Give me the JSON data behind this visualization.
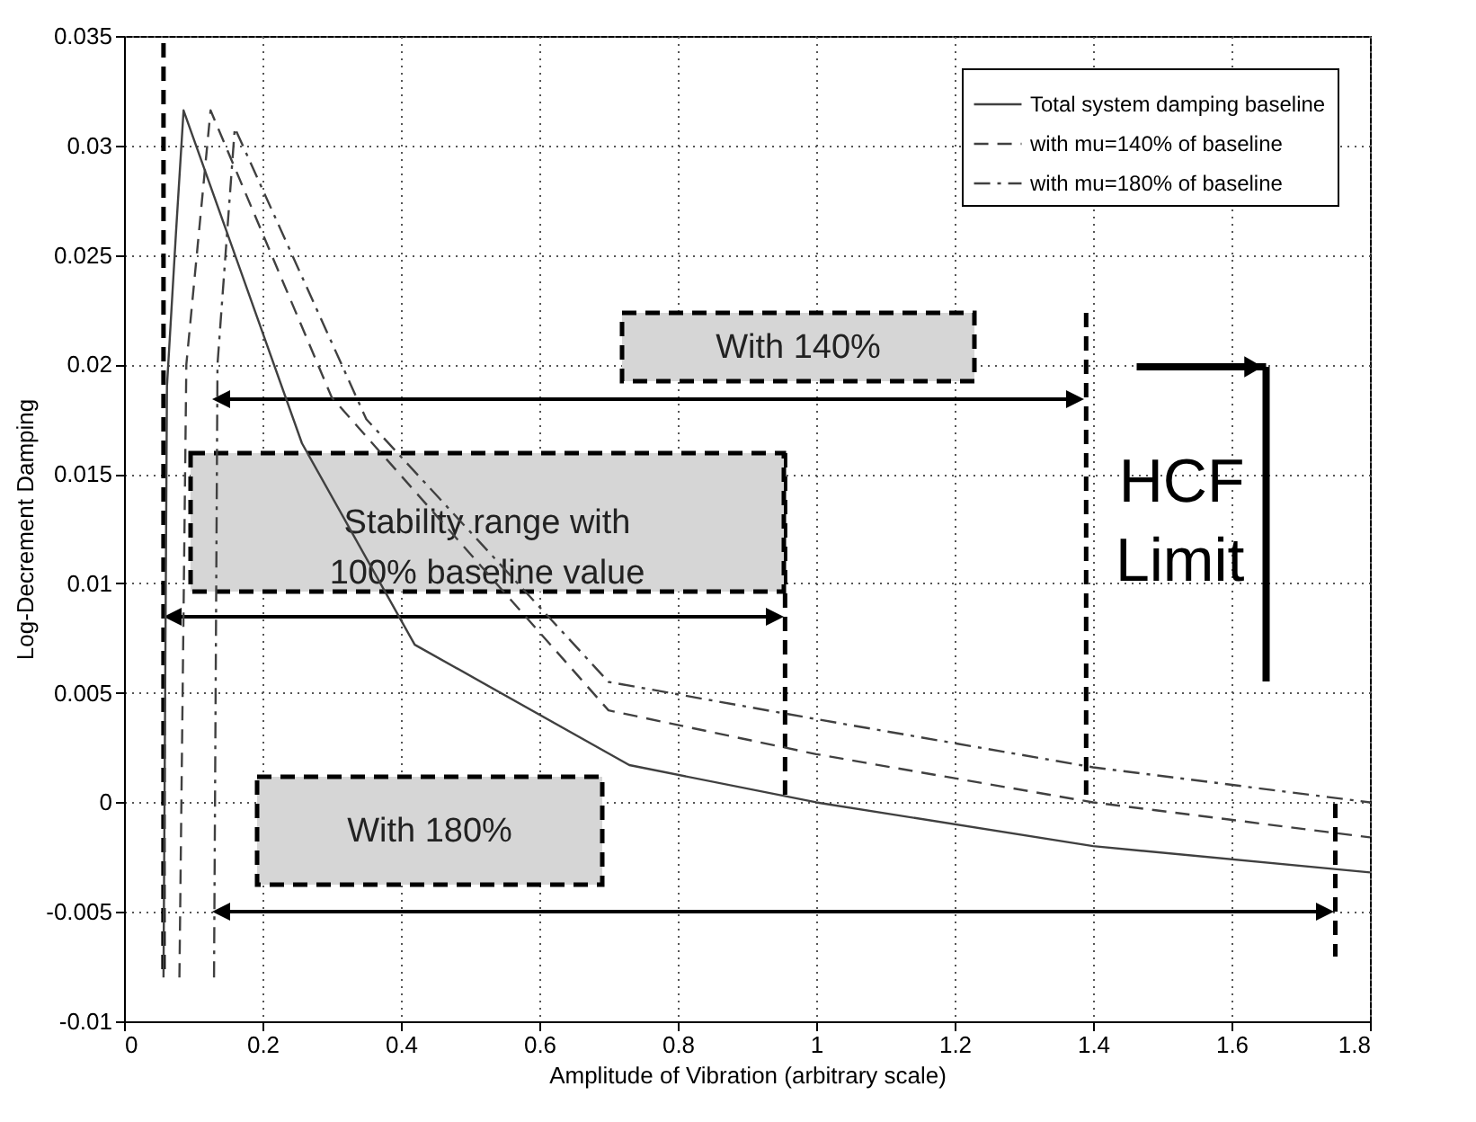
{
  "chart_data": {
    "type": "line",
    "xlabel": "Amplitude of Vibration (arbitrary scale)",
    "ylabel": "Log-Decrement Damping",
    "xlim": [
      0,
      1.8
    ],
    "xticks": [
      0,
      0.2,
      0.4,
      0.6,
      0.8,
      1,
      1.2,
      1.4,
      1.6,
      1.8
    ],
    "ylim": [
      -0.01,
      0.035
    ],
    "yticks": [
      -0.01,
      -0.005,
      0,
      0.005,
      0.01,
      0.015,
      0.02,
      0.025,
      0.03,
      0.035
    ],
    "grid": true,
    "legend": "top right",
    "series": [
      {
        "name": "Total system damping baseline",
        "color": "#404040",
        "line_style": "solid",
        "x": [
          0.057,
          0.062,
          0.075,
          0.086,
          0.257,
          0.42,
          0.73,
          1.0,
          1.4,
          1.8
        ],
        "values": [
          -0.008,
          0.019,
          0.026,
          0.0316,
          0.0164,
          0.0072,
          0.0017,
          0.0,
          -0.002,
          -0.0032
        ]
      },
      {
        "name": "with mu=140% of baseline",
        "color": "#404040",
        "line_style": "dashed",
        "x": [
          0.08,
          0.09,
          0.125,
          0.3,
          0.7,
          1.0,
          1.4,
          1.8
        ],
        "values": [
          -0.008,
          0.02,
          0.0316,
          0.0185,
          0.0042,
          0.0022,
          0.0,
          -0.0016
        ]
      },
      {
        "name": "with mu=180% of baseline",
        "color": "#404040",
        "line_style": "dashdot",
        "x": [
          0.13,
          0.135,
          0.16,
          0.35,
          0.7,
          1.0,
          1.4,
          1.8
        ],
        "values": [
          -0.008,
          0.02,
          0.0308,
          0.0175,
          0.0055,
          0.0038,
          0.0016,
          0.0
        ]
      }
    ],
    "ref_lines": [
      {
        "axis": "x",
        "value": 0.057,
        "color": "#000000",
        "line_style": "dashed"
      },
      {
        "axis": "x",
        "value": 0.955,
        "color": "#000000",
        "line_style": "dashed"
      },
      {
        "axis": "x",
        "value": 1.39,
        "color": "#000000",
        "line_style": "dashed"
      },
      {
        "axis": "x",
        "value": 1.75,
        "color": "#000000",
        "line_style": "dashed"
      },
      {
        "axis": "x",
        "value": 1.65,
        "label": "HCF\nLimit",
        "color": "#000000",
        "line_style": "solid"
      }
    ],
    "annotations": [
      "Stability range with\n100%  baseline value",
      "With 140%",
      "With  180%"
    ]
  }
}
